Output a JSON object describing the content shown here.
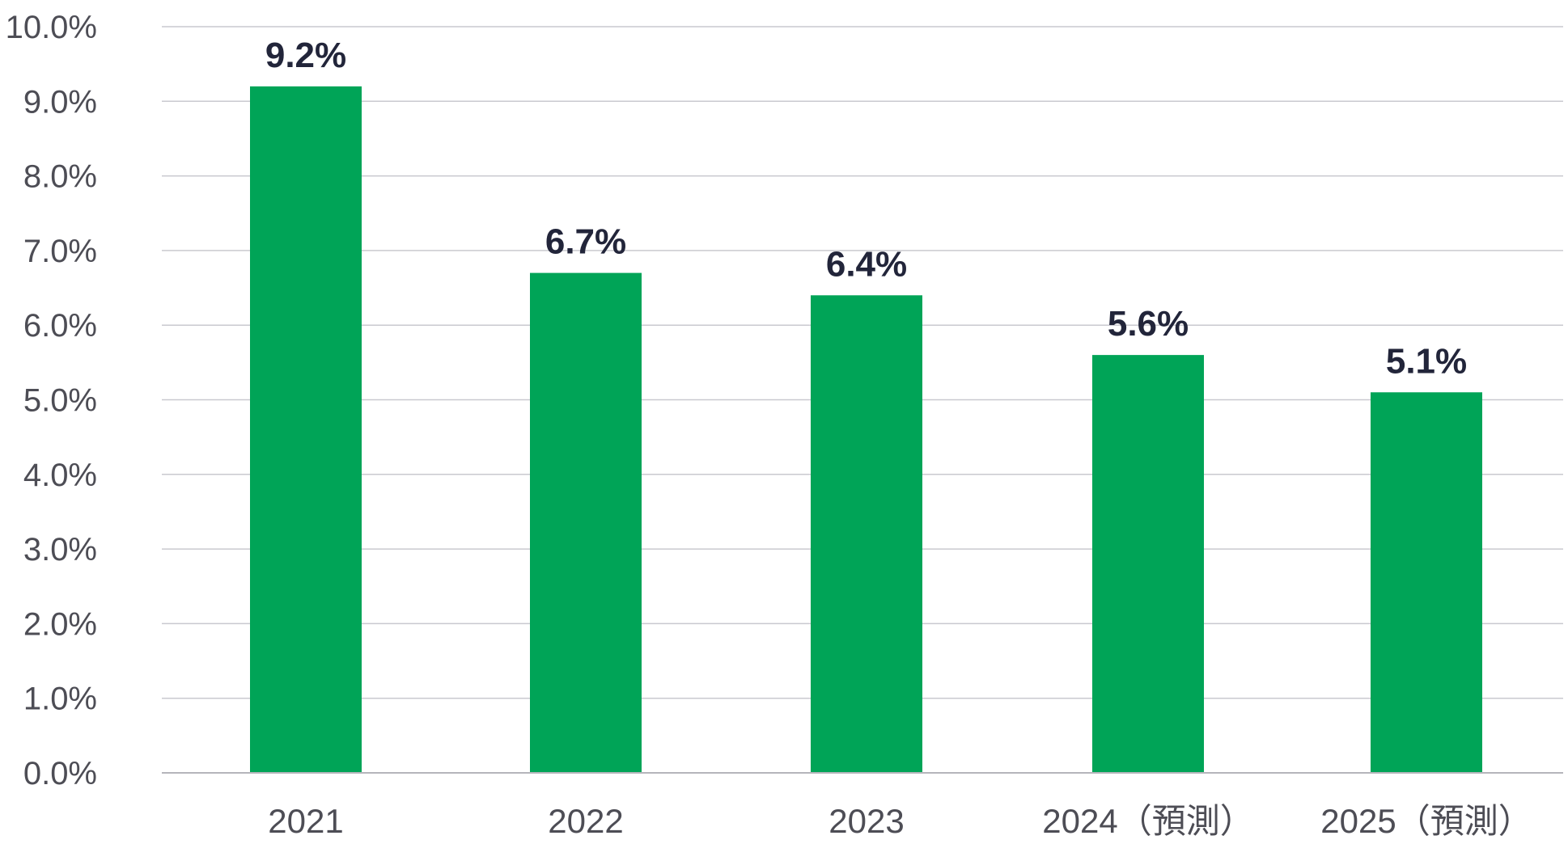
{
  "chart_data": {
    "type": "bar",
    "categories": [
      "2021",
      "2022",
      "2023",
      "2024（預測）",
      "2025（預測）"
    ],
    "values": [
      9.2,
      6.7,
      6.4,
      5.6,
      5.1
    ],
    "data_labels": [
      "9.2%",
      "6.7%",
      "6.4%",
      "5.6%",
      "5.1%"
    ],
    "y_ticks": [
      "0.0%",
      "1.0%",
      "2.0%",
      "3.0%",
      "4.0%",
      "5.0%",
      "6.0%",
      "7.0%",
      "8.0%",
      "9.0%",
      "10.0%"
    ],
    "ylim": [
      0,
      10
    ],
    "grid": true,
    "legend": "none",
    "colors": {
      "bar": "#00a457",
      "label": "#22253a"
    }
  }
}
